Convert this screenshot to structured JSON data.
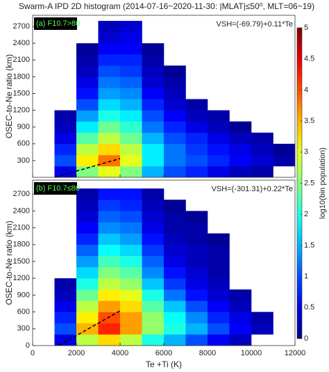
{
  "chart_data": [
    {
      "type": "heatmap",
      "title": "Swarm-A IPD 2D histogram (2014-07-16~2020-11-30: |MLAT|≤50⁰, MLT=06~19)",
      "panel_label": "(a) F10.7>80",
      "annotation": "VSH=(-69.79)+0.11*Te",
      "ylabel": "OSEC-to-Ne ratio (km)",
      "xlim": [
        0,
        12000
      ],
      "xticks": [
        0,
        2000,
        4000,
        6000,
        8000,
        10000,
        12000
      ],
      "ylim": [
        0,
        2900
      ],
      "yticks": [
        300,
        600,
        900,
        1200,
        1500,
        1800,
        2100,
        2400,
        2700
      ],
      "x_bins": [
        0,
        1000,
        2000,
        3000,
        4000,
        5000,
        6000,
        7000,
        8000,
        9000,
        10000,
        11000,
        12000
      ],
      "y_bins": [
        0,
        200,
        400,
        600,
        800,
        1000,
        1200,
        1400,
        1600,
        1800,
        2000,
        2200,
        2400,
        2600,
        2800
      ],
      "values": [
        [
          null,
          0.5,
          2.5,
          3.0,
          2.5,
          1.5,
          1.0,
          0.8,
          0.5,
          0.3,
          0.2,
          null
        ],
        [
          null,
          1.0,
          3.2,
          3.8,
          3.0,
          1.8,
          1.2,
          1.0,
          0.8,
          0.6,
          0.4,
          0.2
        ],
        [
          null,
          0.8,
          2.8,
          3.3,
          2.8,
          1.8,
          1.2,
          0.9,
          0.7,
          0.5,
          0.3,
          0.1
        ],
        [
          null,
          0.5,
          2.3,
          2.8,
          2.4,
          1.5,
          1.0,
          0.8,
          0.5,
          0.3,
          0.2,
          null
        ],
        [
          null,
          0.3,
          1.8,
          2.4,
          2.1,
          1.2,
          0.8,
          0.5,
          0.3,
          0.1,
          null,
          null
        ],
        [
          null,
          0.2,
          1.4,
          2.0,
          1.8,
          1.0,
          0.6,
          0.3,
          0.2,
          null,
          null,
          null
        ],
        [
          null,
          null,
          1.0,
          1.7,
          1.5,
          0.8,
          0.4,
          0.2,
          null,
          null,
          null,
          null
        ],
        [
          null,
          null,
          0.7,
          1.4,
          1.3,
          0.6,
          0.3,
          null,
          null,
          null,
          null,
          null
        ],
        [
          null,
          null,
          0.5,
          1.2,
          1.1,
          0.4,
          0.2,
          null,
          null,
          null,
          null,
          null
        ],
        [
          null,
          null,
          0.3,
          1.0,
          0.9,
          0.3,
          0.1,
          null,
          null,
          null,
          null,
          null
        ],
        [
          null,
          null,
          0.2,
          0.8,
          0.8,
          0.2,
          null,
          null,
          null,
          null,
          null,
          null
        ],
        [
          null,
          null,
          0.1,
          0.6,
          0.6,
          0.1,
          null,
          null,
          null,
          null,
          null,
          null
        ],
        [
          null,
          null,
          null,
          0.4,
          0.5,
          null,
          null,
          null,
          null,
          null,
          null,
          null
        ],
        [
          null,
          null,
          null,
          0.3,
          0.4,
          null,
          null,
          null,
          null,
          null,
          null,
          null
        ]
      ],
      "fit_line": {
        "x": [
          1000,
          4000
        ],
        "y": [
          0,
          335
        ]
      },
      "colorbar": {
        "label": "log10(bin population)",
        "lim": [
          0,
          5
        ],
        "ticks": [
          0,
          0.5,
          1,
          1.5,
          2,
          2.5,
          3,
          3.5,
          4,
          4.5,
          5
        ],
        "colormap": "jet"
      }
    },
    {
      "type": "heatmap",
      "panel_label": "(b) F10.7≤80",
      "annotation": "VSH=(-301.31)+0.22*Te",
      "ylabel": "OSEC-to-Ne ratio (km)",
      "xlabel": "Te +Ti (K)",
      "xlim": [
        0,
        12000
      ],
      "xticks": [
        0,
        2000,
        4000,
        6000,
        8000,
        10000,
        12000
      ],
      "ylim": [
        0,
        2950
      ],
      "yticks": [
        0,
        300,
        600,
        900,
        1200,
        1500,
        1800,
        2100,
        2400,
        2700
      ],
      "x_bins": [
        0,
        1000,
        2000,
        3000,
        4000,
        5000,
        6000,
        7000,
        8000,
        9000,
        10000,
        11000,
        12000
      ],
      "y_bins": [
        0,
        200,
        400,
        600,
        800,
        1000,
        1200,
        1400,
        1600,
        1800,
        2000,
        2200,
        2400,
        2600,
        2800
      ],
      "values": [
        [
          null,
          0.5,
          2.8,
          3.3,
          2.8,
          2.0,
          1.5,
          1.0,
          0.6,
          0.3,
          null,
          null
        ],
        [
          null,
          1.0,
          3.5,
          4.2,
          3.6,
          2.6,
          2.0,
          1.5,
          1.0,
          0.6,
          0.3,
          null
        ],
        [
          null,
          0.8,
          3.2,
          4.0,
          3.6,
          2.6,
          1.9,
          1.3,
          0.8,
          0.5,
          0.2,
          null
        ],
        [
          null,
          0.5,
          2.8,
          3.6,
          3.3,
          2.3,
          1.6,
          1.0,
          0.6,
          0.3,
          null,
          null
        ],
        [
          null,
          0.3,
          2.4,
          3.2,
          3.0,
          2.0,
          1.2,
          0.7,
          0.4,
          0.2,
          null,
          null
        ],
        [
          null,
          0.2,
          2.0,
          2.8,
          2.6,
          1.6,
          0.9,
          0.5,
          0.3,
          null,
          null,
          null
        ],
        [
          null,
          null,
          1.7,
          2.5,
          2.3,
          1.3,
          0.7,
          0.4,
          0.2,
          null,
          null,
          null
        ],
        [
          null,
          null,
          1.4,
          2.2,
          2.0,
          1.1,
          0.5,
          0.3,
          0.2,
          null,
          null,
          null
        ],
        [
          null,
          null,
          1.1,
          1.9,
          1.7,
          0.9,
          0.4,
          0.3,
          0.2,
          null,
          null,
          null
        ],
        [
          null,
          null,
          0.8,
          1.6,
          1.4,
          0.7,
          0.3,
          0.2,
          0.1,
          null,
          null,
          null
        ],
        [
          null,
          null,
          0.6,
          1.3,
          1.2,
          0.5,
          0.2,
          0.2,
          null,
          null,
          null,
          null
        ],
        [
          null,
          null,
          0.4,
          1.1,
          1.0,
          0.4,
          0.2,
          0.1,
          null,
          null,
          null,
          null
        ],
        [
          null,
          null,
          0.3,
          0.9,
          0.8,
          0.3,
          0.1,
          null,
          null,
          null,
          null,
          null
        ],
        [
          null,
          null,
          0.2,
          0.7,
          0.7,
          0.2,
          null,
          null,
          null,
          null,
          null,
          null
        ]
      ],
      "fit_line": {
        "x": [
          1200,
          4000
        ],
        "y": [
          0,
          620
        ]
      }
    }
  ]
}
